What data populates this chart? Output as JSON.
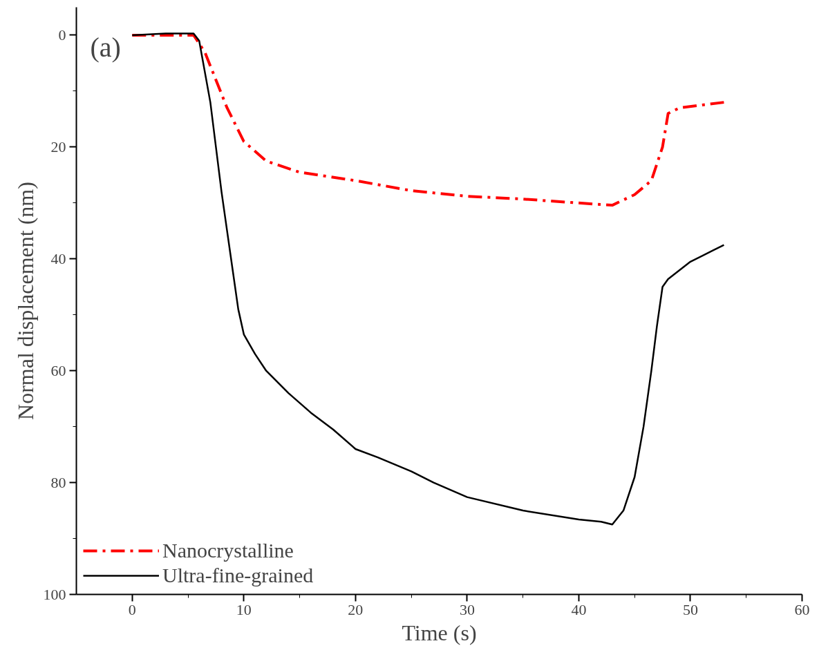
{
  "chart_data": {
    "type": "line",
    "xlabel": "Time (s)",
    "ylabel": "Normal displacement (nm)",
    "annotations": [
      "(a)"
    ],
    "xlim": [
      -5,
      60
    ],
    "xticks": [
      0,
      10,
      20,
      30,
      40,
      50,
      60
    ],
    "ylim": [
      100,
      -5
    ],
    "yticks": [
      0,
      20,
      40,
      60,
      80,
      100
    ],
    "grid": false,
    "legend": "bottom left",
    "series": [
      {
        "name": "Nanocrystalline",
        "color": "#ff0000",
        "line_style": "dashdot",
        "x": [
          0,
          5.5,
          6.5,
          7.5,
          8.5,
          10,
          12,
          15,
          20,
          25,
          30,
          35,
          40,
          43,
          45,
          46.5,
          47.5,
          48,
          49,
          51,
          53
        ],
        "values": [
          0,
          0,
          3,
          8,
          13,
          19,
          22.5,
          24.5,
          26,
          27.8,
          28.8,
          29.3,
          30,
          30.4,
          28.5,
          26,
          20,
          14,
          13,
          12.5,
          12
        ]
      },
      {
        "name": "Ultra-fine-grained",
        "color": "#000000",
        "line_style": "solid",
        "x": [
          0,
          3,
          5.5,
          6,
          7,
          7.5,
          8,
          8.5,
          9,
          9.5,
          10,
          11,
          12,
          14,
          16,
          18,
          20,
          22,
          25,
          27,
          30,
          35,
          40,
          42,
          43,
          44,
          45,
          45.8,
          46.5,
          47,
          47.5,
          48,
          50,
          52,
          53
        ],
        "values": [
          0,
          -0.3,
          -0.3,
          1,
          12,
          20,
          28,
          35,
          42,
          49,
          53.5,
          57,
          60,
          64,
          67.5,
          70.5,
          74,
          75.5,
          78,
          80,
          82.6,
          85,
          86.6,
          87,
          87.5,
          85,
          79,
          70,
          60,
          52,
          45,
          43.6,
          40.5,
          38.5,
          37.5
        ]
      }
    ]
  }
}
